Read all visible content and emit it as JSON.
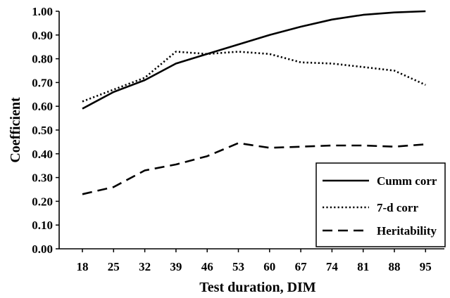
{
  "chart_data": {
    "type": "line",
    "xlabel": "Test duration, DIM",
    "ylabel": "Coefficient",
    "categories": [
      "18",
      "25",
      "32",
      "39",
      "46",
      "53",
      "60",
      "67",
      "74",
      "81",
      "88",
      "95"
    ],
    "ylim": [
      0,
      1
    ],
    "yticks": [
      "0.00",
      "0.10",
      "0.20",
      "0.30",
      "0.40",
      "0.50",
      "0.60",
      "0.70",
      "0.80",
      "0.90",
      "1.00"
    ],
    "grid": false,
    "legend_position": "bottom-right",
    "series": [
      {
        "name": "Cumm corr",
        "style": "solid",
        "values": [
          0.59,
          0.66,
          0.71,
          0.78,
          0.82,
          0.86,
          0.9,
          0.935,
          0.965,
          0.985,
          0.995,
          1.0
        ]
      },
      {
        "name": "7-d corr",
        "style": "dotted",
        "values": [
          0.62,
          0.67,
          0.72,
          0.83,
          0.82,
          0.83,
          0.82,
          0.785,
          0.78,
          0.765,
          0.75,
          0.69
        ]
      },
      {
        "name": "Heritability",
        "style": "dashed",
        "values": [
          0.23,
          0.26,
          0.33,
          0.355,
          0.39,
          0.445,
          0.425,
          0.43,
          0.435,
          0.435,
          0.43,
          0.44
        ]
      }
    ]
  }
}
